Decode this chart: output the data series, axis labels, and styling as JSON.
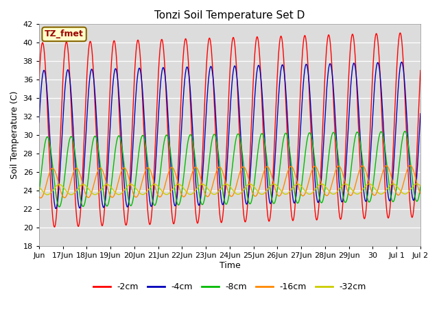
{
  "title": "Tonzi Soil Temperature Set D",
  "ylabel": "Soil Temperature (C)",
  "xlabel": "Time",
  "ylim": [
    18,
    42
  ],
  "bg_color": "#dcdcdc",
  "fig_color": "#ffffff",
  "series_colors": [
    "#ff0000",
    "#0000bb",
    "#00bb00",
    "#ff8800",
    "#cccc00"
  ],
  "series_labels": [
    "-2cm",
    "-4cm",
    "-8cm",
    "-16cm",
    "-32cm"
  ],
  "series_amplitudes": [
    10.0,
    7.5,
    3.8,
    1.6,
    0.55
  ],
  "series_means": [
    30.0,
    29.5,
    26.0,
    24.8,
    24.1
  ],
  "series_phases": [
    0.0,
    0.06,
    0.2,
    0.42,
    0.7
  ],
  "series_trends": [
    0.07,
    0.06,
    0.04,
    0.02,
    0.005
  ],
  "label_text": "TZ_fmet",
  "label_fg": "#990000",
  "label_bg": "#ffffcc",
  "label_edge": "#886600",
  "xtick_labels": [
    "Jun",
    "17Jun",
    "18Jun",
    "19Jun",
    "20Jun",
    "21Jun",
    "22Jun",
    "23Jun",
    "24Jun",
    "25Jun",
    "26Jun",
    "27Jun",
    "28Jun",
    "29Jun",
    "30",
    "Jul 1",
    "Jul 2"
  ],
  "ytick_min": 18,
  "ytick_max": 42,
  "ytick_step": 2
}
